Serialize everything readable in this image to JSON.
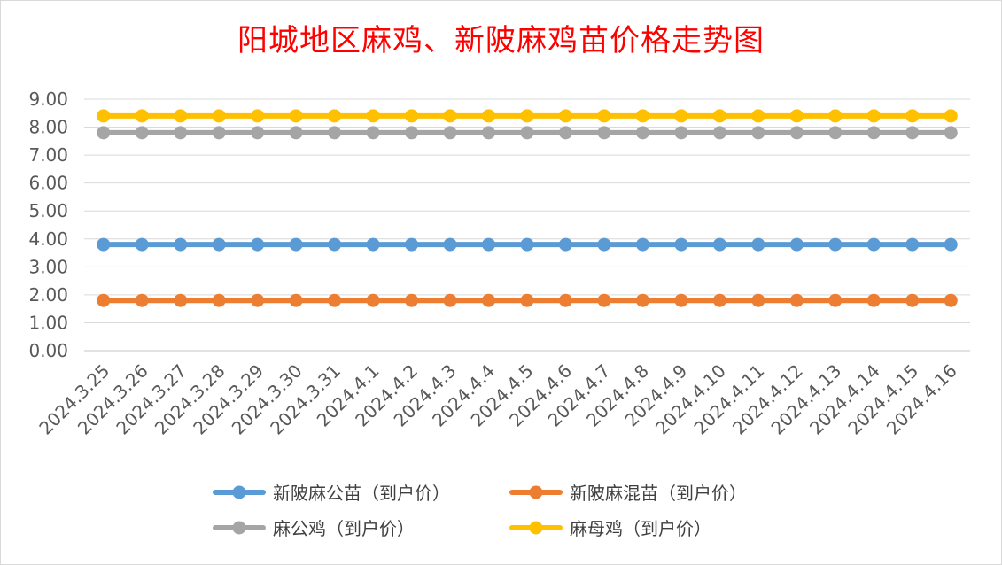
{
  "chart_data": {
    "type": "line",
    "title": "阳城地区麻鸡、新陂麻鸡苗价格走势图",
    "xlabel": "",
    "ylabel": "",
    "ylim": [
      0,
      9
    ],
    "y_ticks": [
      "0.00",
      "1.00",
      "2.00",
      "3.00",
      "4.00",
      "5.00",
      "6.00",
      "7.00",
      "8.00",
      "9.00"
    ],
    "grid": true,
    "legend_position": "bottom",
    "categories": [
      "2024.3.25",
      "2024.3.26",
      "2024.3.27",
      "2024.3.28",
      "2024.3.29",
      "2024.3.30",
      "2024.3.31",
      "2024.4.1",
      "2024.4.2",
      "2024.4.3",
      "2024.4.4",
      "2024.4.5",
      "2024.4.6",
      "2024.4.7",
      "2024.4.8",
      "2024.4.9",
      "2024.4.10",
      "2024.4.11",
      "2024.4.12",
      "2024.4.13",
      "2024.4.14",
      "2024.4.15",
      "2024.4.16"
    ],
    "series": [
      {
        "name": "新陂麻公苗（到户价）",
        "color": "#5b9bd5",
        "values": [
          3.8,
          3.8,
          3.8,
          3.8,
          3.8,
          3.8,
          3.8,
          3.8,
          3.8,
          3.8,
          3.8,
          3.8,
          3.8,
          3.8,
          3.8,
          3.8,
          3.8,
          3.8,
          3.8,
          3.8,
          3.8,
          3.8,
          3.8
        ]
      },
      {
        "name": "新陂麻混苗（到户价）",
        "color": "#ed7d31",
        "values": [
          1.8,
          1.8,
          1.8,
          1.8,
          1.8,
          1.8,
          1.8,
          1.8,
          1.8,
          1.8,
          1.8,
          1.8,
          1.8,
          1.8,
          1.8,
          1.8,
          1.8,
          1.8,
          1.8,
          1.8,
          1.8,
          1.8,
          1.8
        ]
      },
      {
        "name": "麻公鸡（到户价）",
        "color": "#a5a5a5",
        "values": [
          7.8,
          7.8,
          7.8,
          7.8,
          7.8,
          7.8,
          7.8,
          7.8,
          7.8,
          7.8,
          7.8,
          7.8,
          7.8,
          7.8,
          7.8,
          7.8,
          7.8,
          7.8,
          7.8,
          7.8,
          7.8,
          7.8,
          7.8
        ]
      },
      {
        "name": "麻母鸡（到户价）",
        "color": "#ffc000",
        "values": [
          8.4,
          8.4,
          8.4,
          8.4,
          8.4,
          8.4,
          8.4,
          8.4,
          8.4,
          8.4,
          8.4,
          8.4,
          8.4,
          8.4,
          8.4,
          8.4,
          8.4,
          8.4,
          8.4,
          8.4,
          8.4,
          8.4,
          8.4
        ]
      }
    ]
  }
}
